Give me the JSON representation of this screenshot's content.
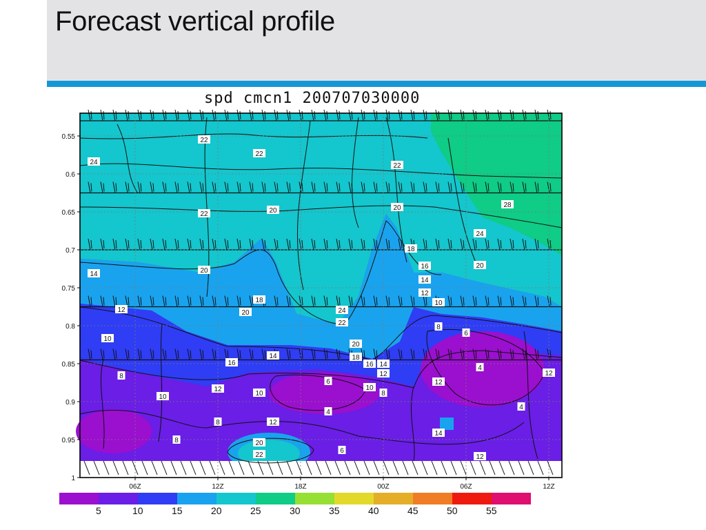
{
  "slide": {
    "title": "Forecast vertical profile",
    "header_color": "#e3e3e5",
    "accent_color": "#1597d6"
  },
  "chart_data": {
    "type": "heatmap",
    "title": "spd cmcn1 200707030000",
    "xlabel": "",
    "ylabel": "",
    "x_ticks": [
      "06Z",
      "12Z",
      "18Z",
      "00Z",
      "06Z",
      "12Z"
    ],
    "y_ticks": [
      "0.55",
      "0.6",
      "0.65",
      "0.7",
      "0.75",
      "0.8",
      "0.85",
      "0.9",
      "0.95",
      "1"
    ],
    "ylim": [
      1.0,
      0.52
    ],
    "y_scale": "pressure ratio (sigma), decreasing upward",
    "grid": true,
    "colorbar": {
      "placement": "bottom",
      "ticks": [
        "5",
        "10",
        "15",
        "20",
        "25",
        "30",
        "35",
        "40",
        "45",
        "50",
        "55"
      ],
      "colors": [
        "#9b0fcf",
        "#6a1ee6",
        "#2f3df5",
        "#19a3ee",
        "#14c6cd",
        "#0fcc86",
        "#96df34",
        "#e2d92b",
        "#e5ae28",
        "#f07c25",
        "#ee1a10",
        "#de0f6e"
      ]
    },
    "speed_levels": [
      {
        "y_range": [
          0.52,
          0.66
        ],
        "speed": 24,
        "band": "25"
      },
      {
        "y_range": [
          0.66,
          0.76
        ],
        "speed": 18,
        "band": "20"
      },
      {
        "y_range": [
          0.76,
          0.84
        ],
        "speed": 11,
        "band": "10-15"
      },
      {
        "y_range": [
          0.84,
          1.0
        ],
        "speed": 7,
        "band": "5-10"
      }
    ],
    "contour_labels": [
      "22",
      "22",
      "24",
      "22",
      "22",
      "20",
      "20",
      "28",
      "24",
      "12",
      "20",
      "20",
      "18",
      "16",
      "14",
      "14",
      "12",
      "10",
      "18",
      "20",
      "12",
      "24",
      "22",
      "8",
      "6",
      "10",
      "20",
      "16",
      "14",
      "16",
      "14",
      "18",
      "12",
      "8",
      "4",
      "6",
      "10",
      "8",
      "12",
      "10",
      "10",
      "12",
      "4",
      "8",
      "12",
      "8",
      "4",
      "20",
      "22",
      "14",
      "6",
      "12"
    ],
    "barb_rows": [
      "0.53",
      "0.625",
      "0.7",
      "0.775",
      "0.845",
      "0.95"
    ]
  }
}
